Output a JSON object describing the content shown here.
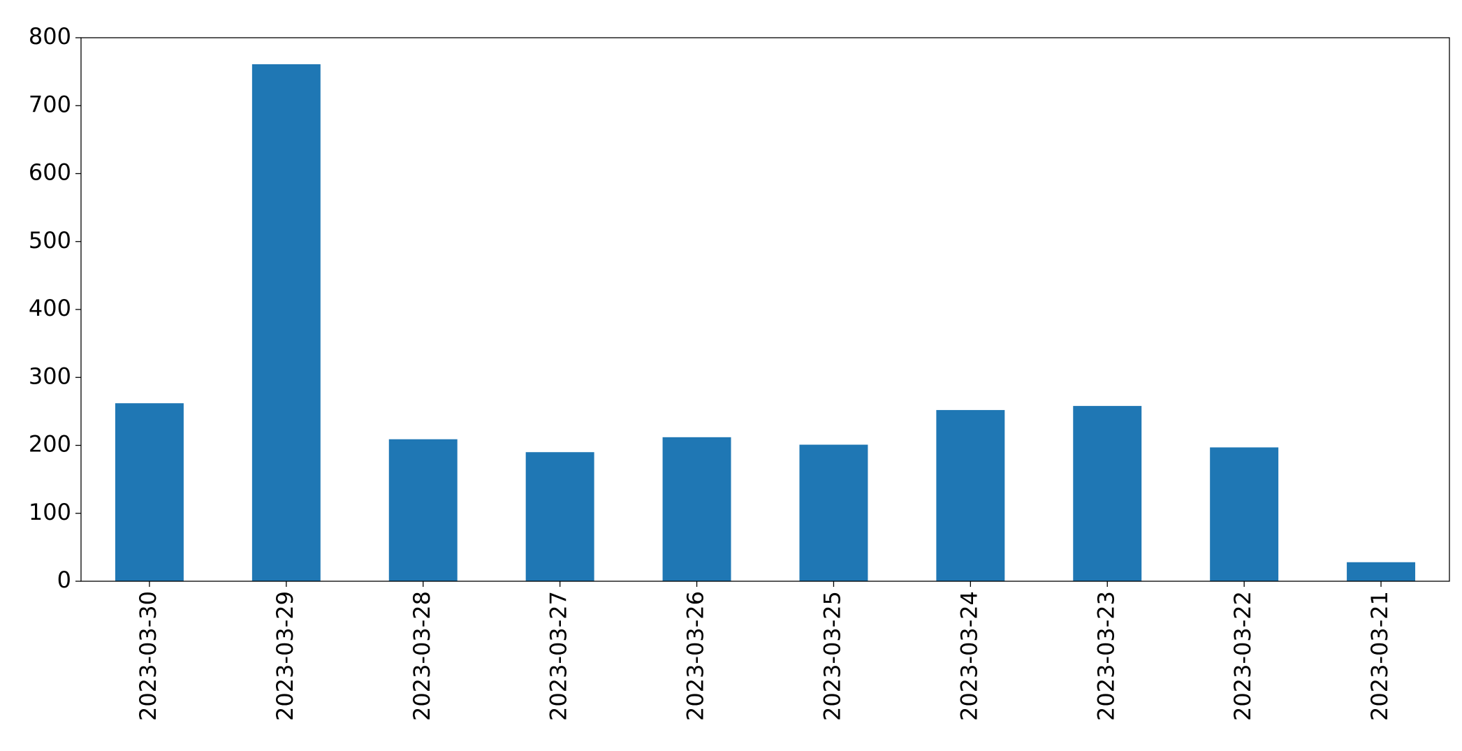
{
  "chart_data": {
    "type": "bar",
    "categories": [
      "2023-03-30",
      "2023-03-29",
      "2023-03-28",
      "2023-03-27",
      "2023-03-26",
      "2023-03-25",
      "2023-03-24",
      "2023-03-23",
      "2023-03-22",
      "2023-03-21"
    ],
    "values": [
      262,
      761,
      209,
      190,
      212,
      201,
      252,
      258,
      197,
      28
    ],
    "color": "#1f77b4",
    "ylim": [
      0,
      800
    ],
    "yticks": [
      0,
      100,
      200,
      300,
      400,
      500,
      600,
      700,
      800
    ],
    "grid": false
  }
}
